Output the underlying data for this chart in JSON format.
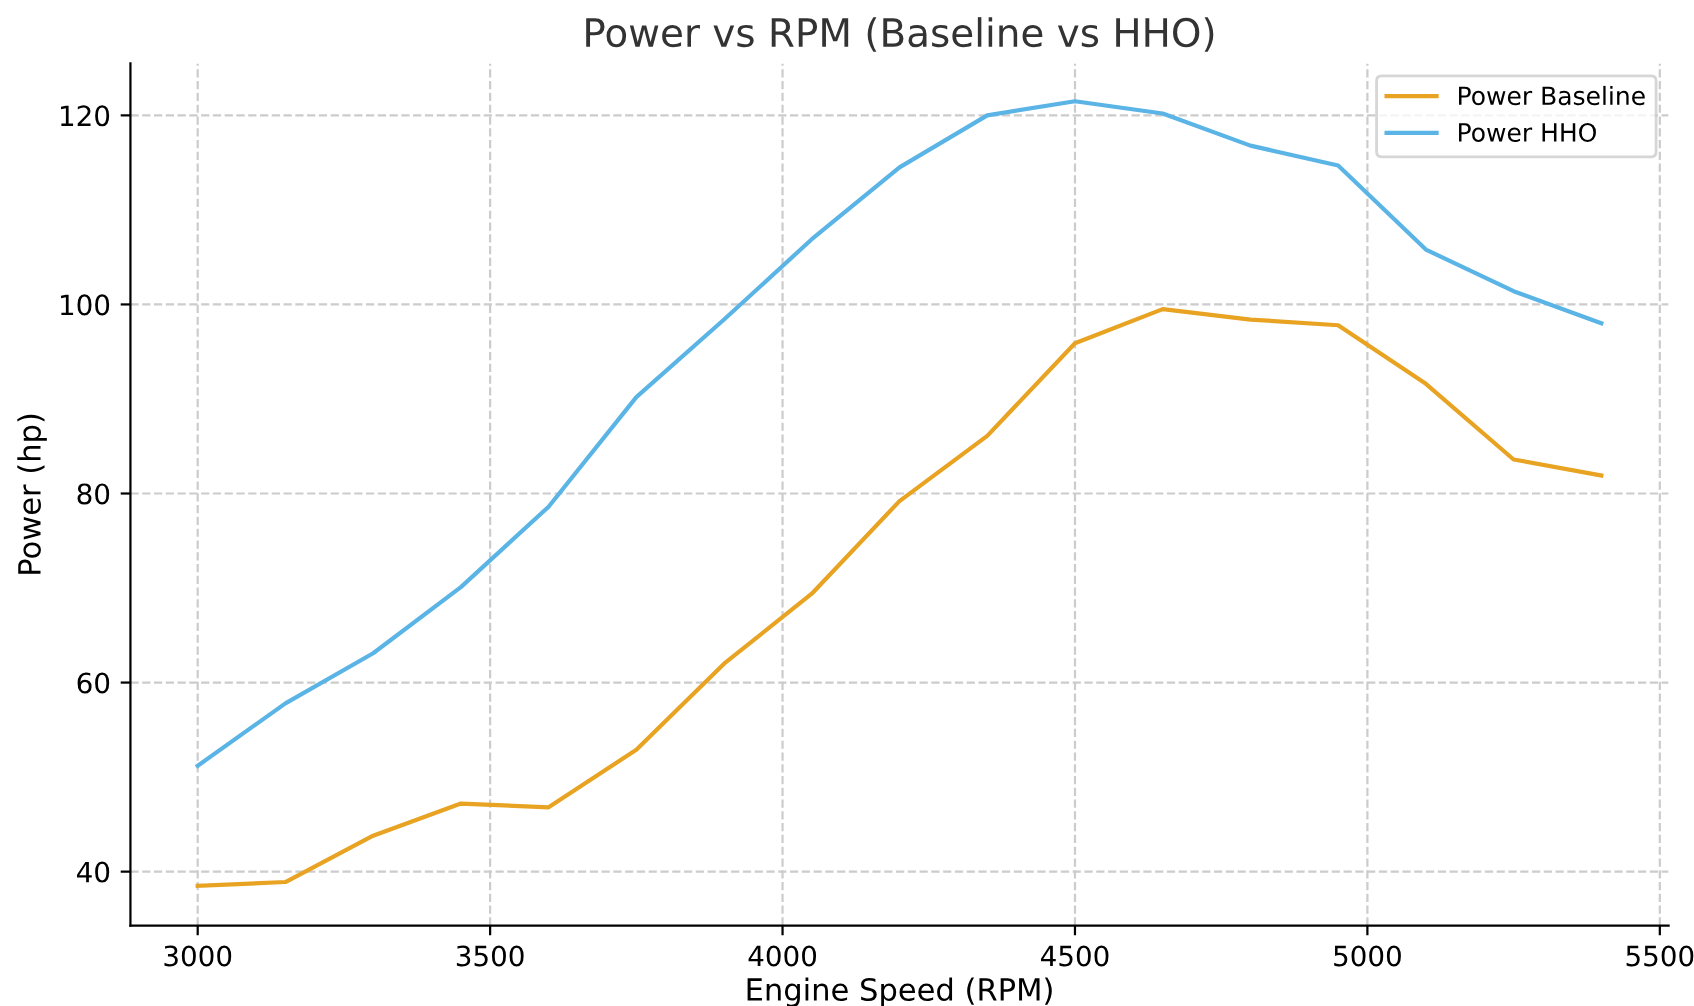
{
  "chart_data": {
    "type": "line",
    "title": "Power vs RPM (Baseline vs HHO)",
    "xlabel": "Engine Speed (RPM)",
    "ylabel": "Power (hp)",
    "x": [
      3000,
      3150,
      3300,
      3450,
      3600,
      3750,
      3900,
      4050,
      4200,
      4350,
      4500,
      4650,
      4800,
      4950,
      5100,
      5250,
      5400
    ],
    "series": [
      {
        "name": "Power Baseline",
        "color": "#e8a322",
        "values": [
          38.5,
          38.9,
          43.8,
          47.2,
          46.8,
          52.9,
          62.0,
          69.4,
          79.2,
          86.1,
          95.9,
          99.5,
          98.4,
          97.8,
          91.6,
          83.6,
          81.9
        ]
      },
      {
        "name": "Power HHO",
        "color": "#5ab4e5",
        "values": [
          51.2,
          57.8,
          63.1,
          70.1,
          78.6,
          90.2,
          98.4,
          106.9,
          114.5,
          120.0,
          121.5,
          120.2,
          116.8,
          114.7,
          105.8,
          101.4,
          98.0
        ]
      }
    ],
    "xlim": [
      2885,
      5515
    ],
    "ylim": [
      34.3,
      125.5
    ],
    "xticks": [
      3000,
      3500,
      4000,
      4500,
      5000,
      5500
    ],
    "yticks": [
      40,
      60,
      80,
      100,
      120
    ],
    "grid": true,
    "legend": "top right",
    "marker": "none",
    "line_style": "solid"
  }
}
